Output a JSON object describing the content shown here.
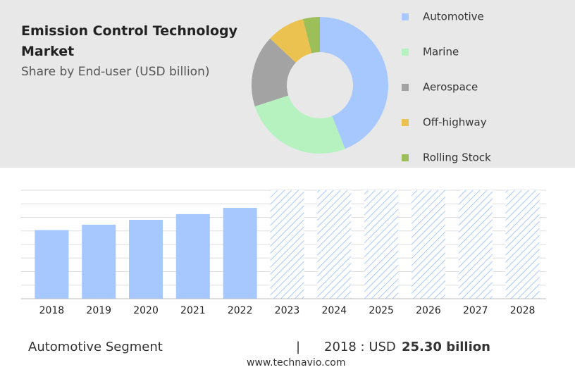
{
  "chart_data": [
    {
      "type": "donut",
      "title": "Emission Control Technology Market",
      "subtitle": "Share by End-user (USD billion)",
      "categories": [
        "Automotive",
        "Marine",
        "Aerospace",
        "Off-highway",
        "Rolling Stock"
      ],
      "values": [
        44,
        26,
        17,
        9,
        4
      ],
      "colors": [
        "#a6c8ff",
        "#b5f2c0",
        "#a3a3a3",
        "#ebc24f",
        "#9dbf5a"
      ]
    },
    {
      "type": "bar",
      "categories": [
        "2018",
        "2019",
        "2020",
        "2021",
        "2022",
        "2023",
        "2024",
        "2025",
        "2026",
        "2027",
        "2028"
      ],
      "values": [
        25.3,
        27.3,
        29.1,
        31.2,
        33.5,
        null,
        null,
        null,
        null,
        null,
        null
      ],
      "color": "#a6c8ff",
      "forecast_color": "#a6c8ff",
      "ylim": [
        0,
        40
      ],
      "yticks": [
        0,
        5,
        10,
        15,
        20,
        25,
        30,
        35,
        40
      ],
      "grid": true
    }
  ],
  "footer": {
    "segment": "Automotive Segment",
    "separator": "|",
    "year_label": "2018 : USD",
    "value_label": "25.30 billion",
    "source": "www.technavio.com"
  }
}
